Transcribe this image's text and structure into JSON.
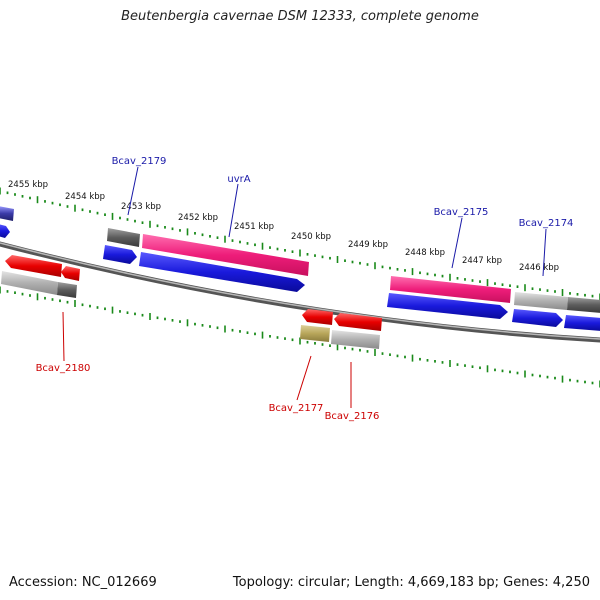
{
  "title": "Beutenbergia cavernae DSM 12333, complete genome",
  "accession": "Accession: NC_012669",
  "topology": "Topology: circular; Length: 4,669,183 bp; Genes: 4,250",
  "colors": {
    "forward_cds": "#ee1d7a",
    "reverse_cds": "#e80000",
    "forward_strand_bar": "#1a1adc",
    "other_gene": "#9a9a9a",
    "dark_gene": "#5c5c5c",
    "olive_gene": "#b8a65a",
    "backbone": "#777777",
    "tick": "#1a8a1a",
    "forward_label": "#1a1aa8",
    "reverse_label": "#cc0000"
  },
  "scale": {
    "labels": [
      "2455 kbp",
      "2454 kbp",
      "2453 kbp",
      "2452 kbp",
      "2451 kbp",
      "2450 kbp",
      "2449 kbp",
      "2448 kbp",
      "2447 kbp",
      "2446 kbp"
    ]
  },
  "gene_labels": {
    "top": [
      "Bcav_2179",
      "uvrA",
      "Bcav_2175",
      "Bcav_2174"
    ],
    "bottom": [
      "Bcav_2180",
      "Bcav_2177",
      "Bcav_2176"
    ]
  }
}
